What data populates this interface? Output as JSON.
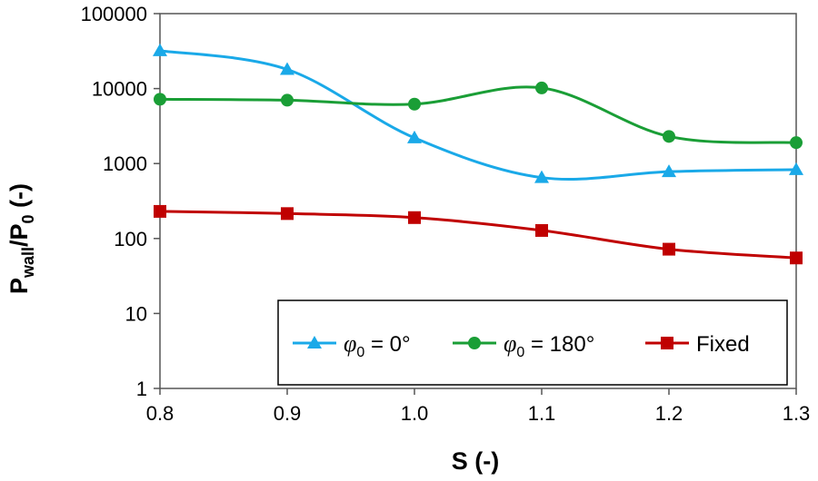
{
  "chart_data": {
    "type": "line",
    "y_scale": "log",
    "x": [
      0.8,
      0.9,
      1.0,
      1.1,
      1.2,
      1.3
    ],
    "x_tick_labels": [
      "0.8",
      "0.9",
      "1.0",
      "1.1",
      "1.2",
      "1.3"
    ],
    "xlim": [
      0.8,
      1.3
    ],
    "ylim": [
      1,
      100000
    ],
    "y_ticks": [
      1,
      10,
      100,
      1000,
      10000,
      100000
    ],
    "y_tick_labels": [
      "1",
      "10",
      "100",
      "1000",
      "10000",
      "100000"
    ],
    "xlabel": "S (-)",
    "ylabel": {
      "main": "P",
      "sub": "wall",
      "slash": "/P",
      "sub2": "0",
      "unit": " (-)"
    },
    "grid": false,
    "legend_position": "bottom-right",
    "series": [
      {
        "name": "φ0 = 0°",
        "label_symbol": "φ",
        "label_sub": "0",
        "label_rest": " = 0°",
        "color": "#1aa9e8",
        "marker": "triangle",
        "values": [
          32000,
          18000,
          2200,
          650,
          780,
          830
        ]
      },
      {
        "name": "φ0 = 180°",
        "label_symbol": "φ",
        "label_sub": "0",
        "label_rest": " = 180°",
        "color": "#1a9e36",
        "marker": "circle",
        "values": [
          7200,
          7000,
          6200,
          10200,
          2300,
          1900
        ]
      },
      {
        "name": "Fixed",
        "label_symbol": "",
        "label_sub": "",
        "label_rest": "Fixed",
        "color": "#c00000",
        "marker": "square",
        "values": [
          230,
          215,
          190,
          128,
          72,
          55
        ]
      }
    ]
  }
}
